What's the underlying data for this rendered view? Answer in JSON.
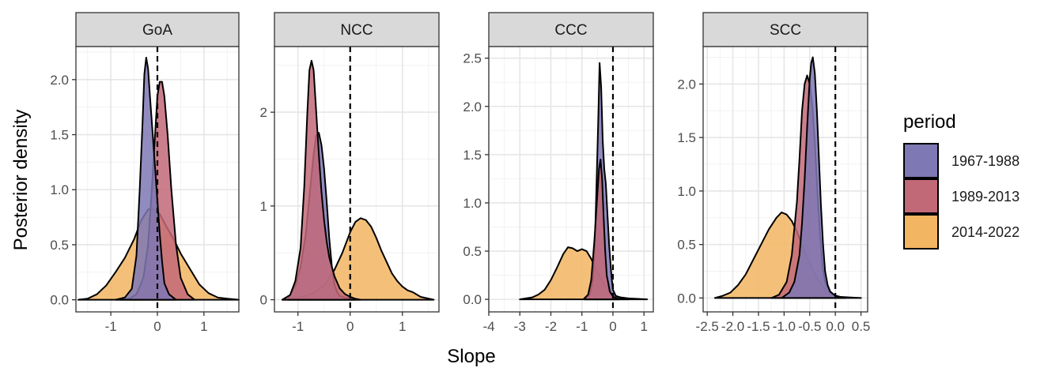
{
  "chart_data": {
    "type": "area",
    "subtype": "faceted density",
    "xlabel": "Slope",
    "ylabel": "Posterior density",
    "legend": {
      "title": "period",
      "position": "right",
      "entries": [
        {
          "label": "1967-1988",
          "color": "#7e78b4"
        },
        {
          "label": "1989-2013",
          "color": "#c26978"
        },
        {
          "label": "2014-2022",
          "color": "#f2b562"
        }
      ]
    },
    "reference_line": {
      "x": 0,
      "style": "dashed",
      "color": "#000000"
    },
    "grid": true,
    "panels": [
      {
        "title": "GoA",
        "xlim": [
          -1.75,
          1.75
        ],
        "ylim": [
          -0.11,
          2.3
        ],
        "xticks": [
          "-1",
          "0",
          "1"
        ],
        "xtick_values": [
          -1,
          0,
          1
        ],
        "yticks": [
          "0.0",
          "0.5",
          "1.0",
          "1.5",
          "2.0"
        ],
        "ytick_values": [
          0,
          0.5,
          1,
          1.5,
          2
        ],
        "series": [
          {
            "name": "2014-2022",
            "x": [
              -1.7,
              -1.5,
              -1.3,
              -1.1,
              -0.9,
              -0.7,
              -0.5,
              -0.35,
              -0.2,
              -0.1,
              0.05,
              0.2,
              0.35,
              0.5,
              0.7,
              0.9,
              1.1,
              1.3,
              1.5,
              1.75
            ],
            "y": [
              0,
              0.01,
              0.05,
              0.13,
              0.25,
              0.38,
              0.55,
              0.72,
              0.82,
              0.83,
              0.78,
              0.66,
              0.55,
              0.42,
              0.28,
              0.14,
              0.06,
              0.02,
              0.01,
              0
            ]
          },
          {
            "name": "1989-2013",
            "x": [
              -0.8,
              -0.6,
              -0.45,
              -0.3,
              -0.2,
              -0.12,
              -0.05,
              0.0,
              0.05,
              0.1,
              0.15,
              0.22,
              0.3,
              0.4,
              0.5,
              0.65,
              0.8
            ],
            "y": [
              0,
              0.01,
              0.05,
              0.2,
              0.5,
              1.0,
              1.5,
              1.85,
              1.98,
              1.98,
              1.85,
              1.5,
              1.0,
              0.5,
              0.2,
              0.05,
              0
            ]
          },
          {
            "name": "1967-1988",
            "x": [
              -0.9,
              -0.7,
              -0.55,
              -0.45,
              -0.38,
              -0.32,
              -0.28,
              -0.24,
              -0.2,
              -0.16,
              -0.1,
              -0.05,
              0.0,
              0.05,
              0.1,
              0.15,
              0.25,
              0.4
            ],
            "y": [
              0,
              0.02,
              0.1,
              0.4,
              1.0,
              1.6,
              2.05,
              2.2,
              2.1,
              1.85,
              1.5,
              1.2,
              0.9,
              0.6,
              0.35,
              0.15,
              0.05,
              0
            ]
          }
        ]
      },
      {
        "title": "NCC",
        "xlim": [
          -1.45,
          1.7
        ],
        "ylim": [
          -0.13,
          2.7
        ],
        "xticks": [
          "-1",
          "0",
          "1"
        ],
        "xtick_values": [
          -1,
          0,
          1
        ],
        "yticks": [
          "0",
          "1",
          "2"
        ],
        "ytick_values": [
          0,
          1,
          2
        ],
        "series": [
          {
            "name": "2014-2022",
            "x": [
              -1.3,
              -1.1,
              -0.9,
              -0.7,
              -0.5,
              -0.3,
              -0.15,
              0.0,
              0.1,
              0.2,
              0.3,
              0.4,
              0.5,
              0.6,
              0.7,
              0.8,
              0.9,
              1.0,
              1.1,
              1.2,
              1.35,
              1.6
            ],
            "y": [
              0,
              0.01,
              0.03,
              0.07,
              0.15,
              0.32,
              0.5,
              0.72,
              0.83,
              0.87,
              0.85,
              0.78,
              0.66,
              0.52,
              0.4,
              0.28,
              0.2,
              0.14,
              0.1,
              0.08,
              0.03,
              0
            ]
          },
          {
            "name": "1967-1988",
            "x": [
              -1.2,
              -1.05,
              -0.95,
              -0.85,
              -0.78,
              -0.7,
              -0.65,
              -0.6,
              -0.55,
              -0.5,
              -0.45,
              -0.4,
              -0.35,
              -0.3,
              -0.25,
              -0.2,
              -0.1,
              0.0,
              0.1
            ],
            "y": [
              0,
              0.15,
              0.35,
              0.7,
              1.1,
              1.55,
              1.75,
              1.78,
              1.65,
              1.4,
              1.05,
              0.65,
              0.35,
              0.16,
              0.08,
              0.04,
              0.02,
              0.01,
              0
            ]
          },
          {
            "name": "1989-2013",
            "x": [
              -1.3,
              -1.15,
              -1.05,
              -0.95,
              -0.88,
              -0.82,
              -0.78,
              -0.74,
              -0.7,
              -0.65,
              -0.6,
              -0.55,
              -0.5,
              -0.45,
              -0.4,
              -0.3,
              -0.2,
              -0.1,
              0.0,
              0.1,
              0.2
            ],
            "y": [
              0,
              0.05,
              0.2,
              0.55,
              1.2,
              2.0,
              2.45,
              2.55,
              2.45,
              2.0,
              1.55,
              1.15,
              0.85,
              0.62,
              0.45,
              0.25,
              0.12,
              0.06,
              0.03,
              0.01,
              0
            ]
          }
        ]
      },
      {
        "title": "CCC",
        "xlim": [
          -4.0,
          1.3
        ],
        "ylim": [
          -0.13,
          2.62
        ],
        "xticks": [
          "-4",
          "-3",
          "-2",
          "-1",
          "0",
          "1"
        ],
        "xtick_values": [
          -4,
          -3,
          -2,
          -1,
          0,
          1
        ],
        "yticks": [
          "0.0",
          "0.5",
          "1.0",
          "1.5",
          "2.0",
          "2.5"
        ],
        "ytick_values": [
          0,
          0.5,
          1,
          1.5,
          2,
          2.5
        ],
        "series": [
          {
            "name": "2014-2022",
            "x": [
              -3.0,
              -2.8,
              -2.6,
              -2.4,
              -2.2,
              -2.0,
              -1.8,
              -1.6,
              -1.45,
              -1.3,
              -1.15,
              -1.0,
              -0.85,
              -0.7,
              -0.55,
              -0.4,
              -0.25,
              -0.1,
              0.05,
              0.25,
              0.5,
              0.8,
              1.1
            ],
            "y": [
              0,
              0.01,
              0.02,
              0.05,
              0.1,
              0.2,
              0.33,
              0.47,
              0.54,
              0.53,
              0.5,
              0.52,
              0.5,
              0.42,
              0.32,
              0.22,
              0.14,
              0.08,
              0.04,
              0.02,
              0.01,
              0.005,
              0
            ]
          },
          {
            "name": "1967-1988",
            "x": [
              -0.9,
              -0.75,
              -0.65,
              -0.58,
              -0.52,
              -0.47,
              -0.43,
              -0.38,
              -0.33,
              -0.28,
              -0.23,
              -0.18,
              -0.12,
              -0.05,
              0.0,
              0.1,
              0.3,
              0.5
            ],
            "y": [
              0,
              0.05,
              0.2,
              0.6,
              1.3,
              1.9,
              2.45,
              2.2,
              1.65,
              1.35,
              1.2,
              0.9,
              0.55,
              0.25,
              0.1,
              0.03,
              0.01,
              0
            ]
          },
          {
            "name": "1989-2013",
            "x": [
              -0.95,
              -0.8,
              -0.7,
              -0.6,
              -0.5,
              -0.45,
              -0.4,
              -0.35,
              -0.3,
              -0.25,
              -0.2,
              -0.1,
              0.0,
              0.1,
              0.2
            ],
            "y": [
              0,
              0.05,
              0.2,
              0.6,
              1.1,
              1.35,
              1.45,
              1.25,
              0.85,
              0.5,
              0.25,
              0.08,
              0.03,
              0.01,
              0
            ]
          }
        ]
      },
      {
        "title": "SCC",
        "xlim": [
          -2.58,
          0.63
        ],
        "ylim": [
          -0.13,
          2.35
        ],
        "xticks": [
          "-2.5",
          "-2.0",
          "-1.5",
          "-1.0",
          "-0.5",
          "0.0",
          "0.5"
        ],
        "xtick_values": [
          -2.5,
          -2.0,
          -1.5,
          -1.0,
          -0.5,
          0.0,
          0.5
        ],
        "yticks": [
          "0.0",
          "0.5",
          "1.0",
          "1.5",
          "2.0"
        ],
        "ytick_values": [
          0,
          0.5,
          1,
          1.5,
          2
        ],
        "series": [
          {
            "name": "2014-2022",
            "x": [
              -2.35,
              -2.2,
              -2.05,
              -1.9,
              -1.75,
              -1.6,
              -1.45,
              -1.3,
              -1.15,
              -1.05,
              -0.95,
              -0.85,
              -0.75,
              -0.65,
              -0.55,
              -0.45,
              -0.35,
              -0.25,
              -0.15,
              -0.05,
              0.1,
              0.3,
              0.5
            ],
            "y": [
              0,
              0.02,
              0.05,
              0.12,
              0.22,
              0.36,
              0.5,
              0.64,
              0.75,
              0.8,
              0.78,
              0.72,
              0.62,
              0.5,
              0.38,
              0.27,
              0.18,
              0.11,
              0.06,
              0.03,
              0.01,
              0.005,
              0
            ]
          },
          {
            "name": "1989-2013",
            "x": [
              -1.25,
              -1.1,
              -0.95,
              -0.85,
              -0.75,
              -0.7,
              -0.65,
              -0.6,
              -0.55,
              -0.5,
              -0.45,
              -0.4,
              -0.35,
              -0.3,
              -0.25,
              -0.2,
              -0.1,
              0.0,
              0.2
            ],
            "y": [
              0,
              0.03,
              0.15,
              0.4,
              0.9,
              1.3,
              1.75,
              2.0,
              2.08,
              2.0,
              1.8,
              1.45,
              1.0,
              0.6,
              0.3,
              0.15,
              0.05,
              0.02,
              0
            ]
          },
          {
            "name": "1967-1988",
            "x": [
              -1.05,
              -0.9,
              -0.8,
              -0.7,
              -0.65,
              -0.6,
              -0.55,
              -0.5,
              -0.47,
              -0.44,
              -0.4,
              -0.36,
              -0.32,
              -0.28,
              -0.24,
              -0.2,
              -0.15,
              -0.1,
              0.0,
              0.15
            ],
            "y": [
              0,
              0.05,
              0.15,
              0.4,
              0.7,
              1.1,
              1.6,
              2.05,
              2.2,
              2.25,
              2.1,
              1.75,
              1.3,
              0.85,
              0.5,
              0.25,
              0.12,
              0.06,
              0.02,
              0
            ]
          }
        ]
      }
    ]
  }
}
